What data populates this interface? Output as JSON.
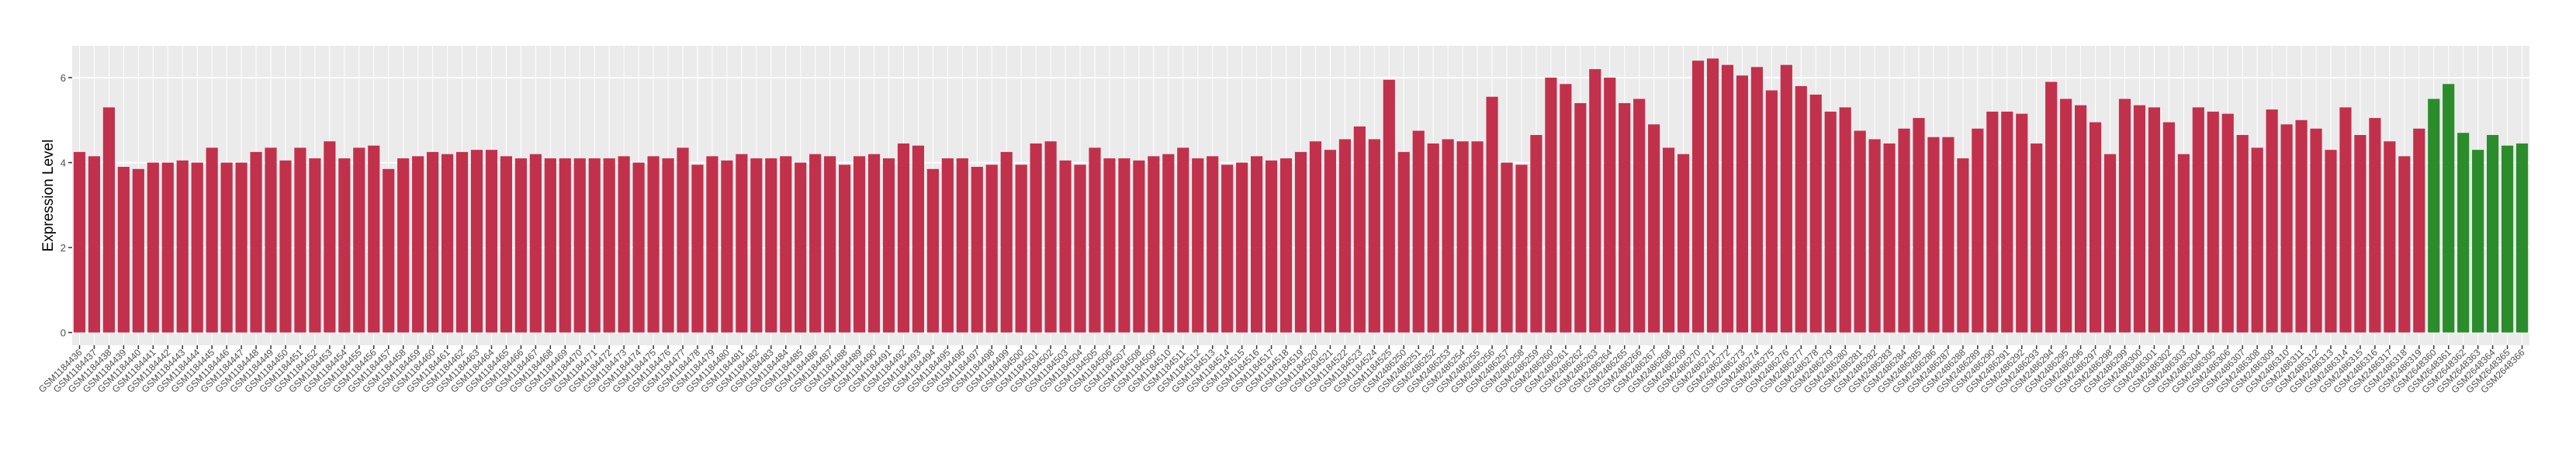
{
  "chart_data": {
    "type": "bar",
    "y_label": "Expression Level",
    "categories": [
      "GSM1184436",
      "GSM1184437",
      "GSM1184438",
      "GSM1184439",
      "GSM1184440",
      "GSM1184441",
      "GSM1184442",
      "GSM1184443",
      "GSM1184444",
      "GSM1184445",
      "GSM1184446",
      "GSM1184447",
      "GSM1184448",
      "GSM1184449",
      "GSM1184450",
      "GSM1184451",
      "GSM1184452",
      "GSM1184453",
      "GSM1184454",
      "GSM1184455",
      "GSM1184456",
      "GSM1184457",
      "GSM1184458",
      "GSM1184459",
      "GSM1184460",
      "GSM1184461",
      "GSM1184462",
      "GSM1184463",
      "GSM1184464",
      "GSM1184465",
      "GSM1184466",
      "GSM1184467",
      "GSM1184468",
      "GSM1184469",
      "GSM1184470",
      "GSM1184471",
      "GSM1184472",
      "GSM1184473",
      "GSM1184474",
      "GSM1184475",
      "GSM1184476",
      "GSM1184477",
      "GSM1184478",
      "GSM1184479",
      "GSM1184480",
      "GSM1184481",
      "GSM1184482",
      "GSM1184483",
      "GSM1184484",
      "GSM1184485",
      "GSM1184486",
      "GSM1184487",
      "GSM1184488",
      "GSM1184489",
      "GSM1184490",
      "GSM1184491",
      "GSM1184492",
      "GSM1184493",
      "GSM1184494",
      "GSM1184495",
      "GSM1184496",
      "GSM1184497",
      "GSM1184498",
      "GSM1184499",
      "GSM1184500",
      "GSM1184501",
      "GSM1184502",
      "GSM1184503",
      "GSM1184504",
      "GSM1184505",
      "GSM1184506",
      "GSM1184507",
      "GSM1184508",
      "GSM1184509",
      "GSM1184510",
      "GSM1184511",
      "GSM1184512",
      "GSM1184513",
      "GSM1184514",
      "GSM1184515",
      "GSM1184516",
      "GSM1184517",
      "GSM1184518",
      "GSM1184519",
      "GSM1184520",
      "GSM1184521",
      "GSM1184522",
      "GSM1184523",
      "GSM1184524",
      "GSM1184525",
      "GSM2486250",
      "GSM2486251",
      "GSM2486252",
      "GSM2486253",
      "GSM2486254",
      "GSM2486255",
      "GSM2486256",
      "GSM2486257",
      "GSM2486258",
      "GSM2486259",
      "GSM2486260",
      "GSM2486261",
      "GSM2486262",
      "GSM2486263",
      "GSM2486264",
      "GSM2486265",
      "GSM2486266",
      "GSM2486267",
      "GSM2486268",
      "GSM2486269",
      "GSM2486270",
      "GSM2486271",
      "GSM2486272",
      "GSM2486273",
      "GSM2486274",
      "GSM2486275",
      "GSM2486276",
      "GSM2486277",
      "GSM2486278",
      "GSM2486279",
      "GSM2486280",
      "GSM2486281",
      "GSM2486282",
      "GSM2486283",
      "GSM2486284",
      "GSM2486285",
      "GSM2486286",
      "GSM2486287",
      "GSM2486288",
      "GSM2486289",
      "GSM2486290",
      "GSM2486291",
      "GSM2486292",
      "GSM2486293",
      "GSM2486294",
      "GSM2486295",
      "GSM2486296",
      "GSM2486297",
      "GSM2486298",
      "GSM2486299",
      "GSM2486300",
      "GSM2486301",
      "GSM2486302",
      "GSM2486303",
      "GSM2486304",
      "GSM2486305",
      "GSM2486306",
      "GSM2486307",
      "GSM2486308",
      "GSM2486309",
      "GSM2486310",
      "GSM2486311",
      "GSM2486312",
      "GSM2486313",
      "GSM2486314",
      "GSM2486315",
      "GSM2486316",
      "GSM2486317",
      "GSM2486318",
      "GSM2486319",
      "GSM2648360",
      "GSM2648361",
      "GSM2648362",
      "GSM2648363",
      "GSM2648364",
      "GSM2648365",
      "GSM2648366"
    ],
    "series": [
      {
        "color": "#c1314c",
        "values": [
          4.25,
          4.15,
          5.3,
          3.9,
          3.85,
          4.0,
          4.0,
          4.05,
          4.0,
          4.35,
          4.0,
          4.0,
          4.25,
          4.35,
          4.05,
          4.35,
          4.1,
          4.5,
          4.1,
          4.35,
          4.4,
          3.85,
          4.1,
          4.15,
          4.25,
          4.2,
          4.25,
          4.3,
          4.3,
          4.15,
          4.1,
          4.2,
          4.1,
          4.1,
          4.1,
          4.1,
          4.1,
          4.15,
          4.0,
          4.15,
          4.1,
          4.35,
          3.95,
          4.15,
          4.05,
          4.2,
          4.1,
          4.1,
          4.15,
          4.0,
          4.2,
          4.15,
          3.95,
          4.15,
          4.2,
          4.1,
          4.45,
          4.4,
          3.85,
          4.1,
          4.1,
          3.9,
          3.95,
          4.25,
          3.95,
          4.45,
          4.5,
          4.05,
          3.95,
          4.35,
          4.1,
          4.1,
          4.05,
          4.15,
          4.2,
          4.35,
          4.1,
          4.15,
          3.95,
          4.0,
          4.15,
          4.05,
          4.1,
          4.25,
          4.5,
          4.3,
          4.55,
          4.85,
          4.55,
          5.95,
          4.25,
          4.75,
          4.45,
          4.55,
          4.5,
          4.5,
          5.55,
          4.0,
          3.95,
          4.65,
          6.0,
          5.85,
          5.4,
          6.2,
          6.0,
          5.4,
          5.5,
          4.9,
          4.35,
          4.2,
          6.4,
          6.45,
          6.3,
          6.05,
          6.25,
          5.7,
          6.3,
          5.8,
          5.6,
          5.2,
          5.3,
          4.75,
          4.55,
          4.45,
          4.8,
          5.05,
          4.6,
          4.6,
          4.1,
          4.8,
          5.2,
          5.2,
          5.15,
          4.45,
          5.9,
          5.5,
          5.35,
          4.95,
          4.2,
          5.5,
          5.35,
          5.3,
          4.95,
          4.2,
          5.3,
          5.2,
          5.15,
          4.65,
          4.35,
          5.25,
          4.9,
          5.0,
          4.8,
          4.3,
          5.3,
          4.65,
          5.05,
          4.5,
          4.15,
          4.8,
          null,
          null,
          null,
          null,
          null,
          null,
          null
        ]
      },
      {
        "color": "#2b8c2b",
        "values": [
          null,
          null,
          null,
          null,
          null,
          null,
          null,
          null,
          null,
          null,
          null,
          null,
          null,
          null,
          null,
          null,
          null,
          null,
          null,
          null,
          null,
          null,
          null,
          null,
          null,
          null,
          null,
          null,
          null,
          null,
          null,
          null,
          null,
          null,
          null,
          null,
          null,
          null,
          null,
          null,
          null,
          null,
          null,
          null,
          null,
          null,
          null,
          null,
          null,
          null,
          null,
          null,
          null,
          null,
          null,
          null,
          null,
          null,
          null,
          null,
          null,
          null,
          null,
          null,
          null,
          null,
          null,
          null,
          null,
          null,
          null,
          null,
          null,
          null,
          null,
          null,
          null,
          null,
          null,
          null,
          null,
          null,
          null,
          null,
          null,
          null,
          null,
          null,
          null,
          null,
          null,
          null,
          null,
          null,
          null,
          null,
          null,
          null,
          null,
          null,
          null,
          null,
          null,
          null,
          null,
          null,
          null,
          null,
          null,
          null,
          null,
          null,
          null,
          null,
          null,
          null,
          null,
          null,
          null,
          null,
          null,
          null,
          null,
          null,
          null,
          null,
          null,
          null,
          null,
          null,
          null,
          null,
          null,
          null,
          null,
          null,
          null,
          null,
          null,
          null,
          null,
          null,
          null,
          null,
          null,
          null,
          null,
          null,
          null,
          null,
          null,
          null,
          null,
          null,
          null,
          null,
          null,
          null,
          null,
          null,
          5.5,
          5.85,
          4.7,
          4.3,
          4.65,
          4.4,
          4.45
        ]
      }
    ],
    "ylim": [
      -0.3,
      6.75
    ],
    "yticks": [
      0,
      2,
      4,
      6
    ],
    "grid": true
  }
}
